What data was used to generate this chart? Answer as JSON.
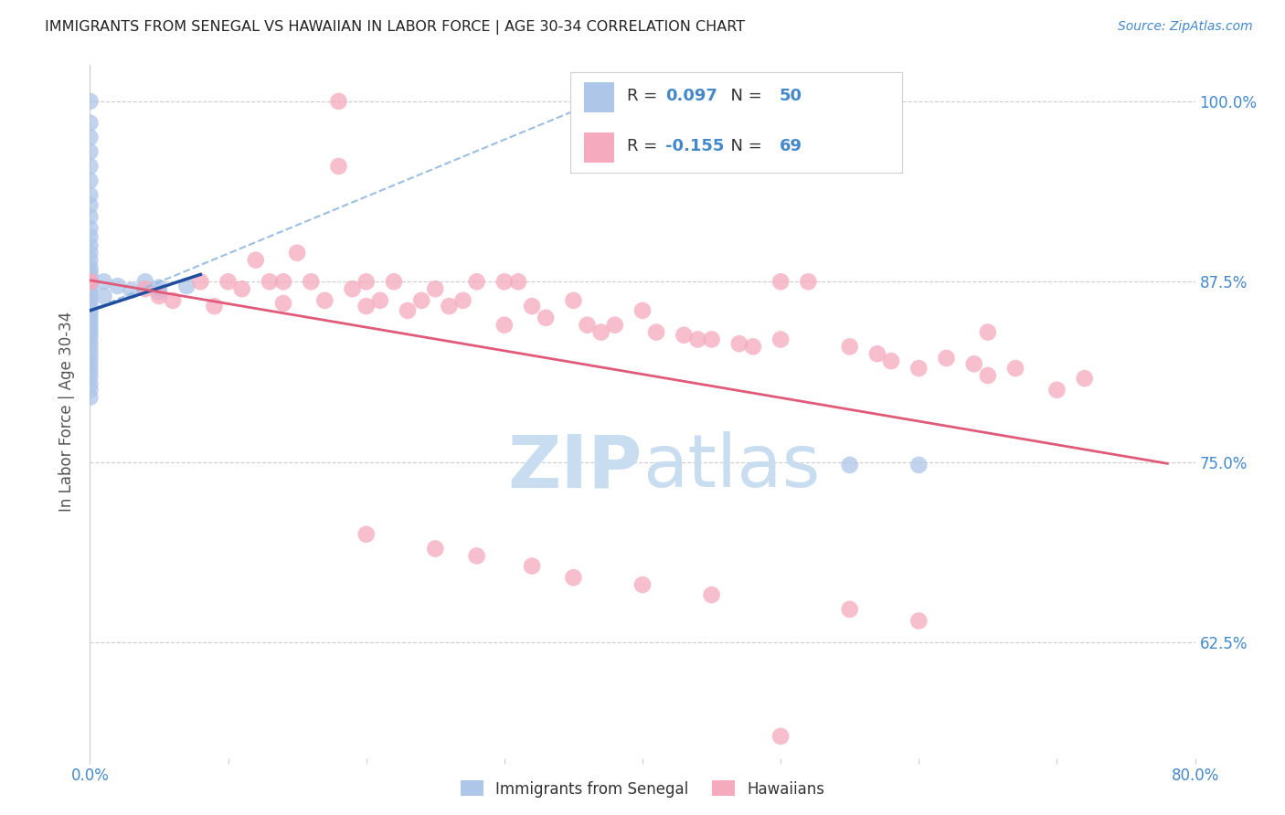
{
  "title": "IMMIGRANTS FROM SENEGAL VS HAWAIIAN IN LABOR FORCE | AGE 30-34 CORRELATION CHART",
  "source": "Source: ZipAtlas.com",
  "ylabel": "In Labor Force | Age 30-34",
  "xlim": [
    0.0,
    0.8
  ],
  "ylim": [
    0.545,
    1.025
  ],
  "ytick_positions": [
    0.625,
    0.75,
    0.875,
    1.0
  ],
  "ytick_labels": [
    "62.5%",
    "75.0%",
    "87.5%",
    "100.0%"
  ],
  "R_blue": 0.097,
  "N_blue": 50,
  "R_pink": -0.155,
  "N_pink": 69,
  "blue_color": "#aec6e8",
  "pink_color": "#f5aabe",
  "blue_line_color": "#1f4e9e",
  "pink_line_color": "#e05a7a",
  "dash_line_color": "#90b8e0",
  "axis_label_color": "#4488cc",
  "title_color": "#222222",
  "watermark_color": "#c8ddf0",
  "blue_pts_x": [
    0.0,
    0.0,
    0.0,
    0.0,
    0.0,
    0.0,
    0.0,
    0.0,
    0.0,
    0.0,
    0.0,
    0.0,
    0.0,
    0.0,
    0.0,
    0.0,
    0.0,
    0.0,
    0.0,
    0.0,
    0.0,
    0.0,
    0.0,
    0.0,
    0.0,
    0.0,
    0.0,
    0.0,
    0.0,
    0.0,
    0.0,
    0.0,
    0.0,
    0.0,
    0.0,
    0.0,
    0.0,
    0.0,
    0.0,
    0.0,
    0.01,
    0.01,
    0.02,
    0.03,
    0.04,
    0.05,
    0.05,
    0.07,
    0.55,
    0.6
  ],
  "blue_pts_y": [
    1.0,
    0.985,
    0.975,
    0.965,
    0.955,
    0.945,
    0.935,
    0.928,
    0.92,
    0.912,
    0.906,
    0.9,
    0.895,
    0.89,
    0.885,
    0.882,
    0.879,
    0.876,
    0.873,
    0.87,
    0.866,
    0.862,
    0.858,
    0.855,
    0.852,
    0.849,
    0.846,
    0.843,
    0.84,
    0.837,
    0.833,
    0.829,
    0.825,
    0.821,
    0.817,
    0.813,
    0.809,
    0.804,
    0.8,
    0.795,
    0.875,
    0.865,
    0.872,
    0.869,
    0.875,
    0.871,
    0.868,
    0.872,
    0.748,
    0.748
  ],
  "pink_pts_x": [
    0.0,
    0.0,
    0.04,
    0.05,
    0.06,
    0.08,
    0.09,
    0.1,
    0.11,
    0.12,
    0.13,
    0.14,
    0.14,
    0.15,
    0.16,
    0.17,
    0.18,
    0.19,
    0.2,
    0.2,
    0.21,
    0.22,
    0.23,
    0.24,
    0.25,
    0.26,
    0.27,
    0.28,
    0.3,
    0.31,
    0.32,
    0.33,
    0.35,
    0.36,
    0.37,
    0.38,
    0.4,
    0.41,
    0.43,
    0.44,
    0.45,
    0.47,
    0.48,
    0.5,
    0.52,
    0.55,
    0.57,
    0.58,
    0.6,
    0.62,
    0.64,
    0.65,
    0.67,
    0.7,
    0.72,
    0.18,
    0.3,
    0.5,
    0.65,
    0.35,
    0.2,
    0.25,
    0.28,
    0.32,
    0.4,
    0.45,
    0.55,
    0.6,
    0.5
  ],
  "pink_pts_y": [
    0.875,
    0.875,
    0.87,
    0.865,
    0.862,
    0.875,
    0.858,
    0.875,
    0.87,
    0.89,
    0.875,
    0.875,
    0.86,
    0.895,
    0.875,
    0.862,
    1.0,
    0.87,
    0.875,
    0.858,
    0.862,
    0.875,
    0.855,
    0.862,
    0.87,
    0.858,
    0.862,
    0.875,
    0.845,
    0.875,
    0.858,
    0.85,
    0.862,
    0.845,
    0.84,
    0.845,
    0.855,
    0.84,
    0.838,
    0.835,
    0.835,
    0.832,
    0.83,
    0.835,
    0.875,
    0.83,
    0.825,
    0.82,
    0.815,
    0.822,
    0.818,
    0.81,
    0.815,
    0.8,
    0.808,
    0.955,
    0.875,
    0.875,
    0.84,
    0.67,
    0.7,
    0.69,
    0.685,
    0.678,
    0.665,
    0.658,
    0.648,
    0.64,
    0.56
  ],
  "blue_line_x0": 0.0,
  "blue_line_x1": 0.08,
  "blue_line_y0": 0.855,
  "blue_line_y1": 0.88,
  "dash_line_x0": 0.0,
  "dash_line_x1": 0.38,
  "dash_line_y0": 0.855,
  "dash_line_y1": 1.005,
  "pink_line_x0": 0.0,
  "pink_line_x1": 0.78,
  "pink_line_y0": 0.876,
  "pink_line_y1": 0.749
}
